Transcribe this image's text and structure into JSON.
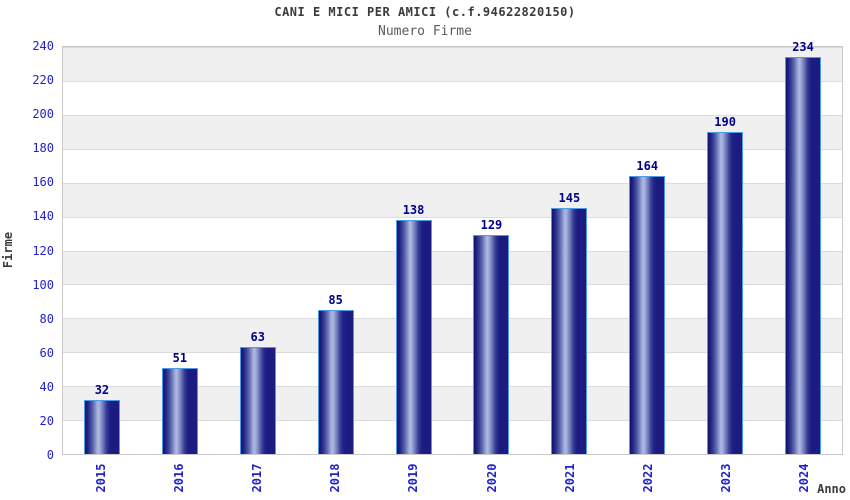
{
  "header": {
    "title": "CANI E MICI PER AMICI (c.f.94622820150)",
    "subtitle": "Numero Firme"
  },
  "chart_data": {
    "type": "bar",
    "title": "CANI E MICI PER AMICI (c.f.94622820150)",
    "subtitle": "Numero Firme",
    "categories": [
      "2015",
      "2016",
      "2017",
      "2018",
      "2019",
      "2020",
      "2021",
      "2022",
      "2023",
      "2024"
    ],
    "values": [
      32,
      51,
      63,
      85,
      138,
      129,
      145,
      164,
      190,
      234
    ],
    "value_labels": [
      "32",
      "51",
      "63",
      "85",
      "138",
      "129",
      "145",
      "164",
      "190",
      "234"
    ],
    "xlabel": "Anno",
    "ylabel": "Firme",
    "ylim": [
      0,
      240
    ],
    "ytick_step": 20,
    "yticks": [
      0,
      20,
      40,
      60,
      80,
      100,
      120,
      140,
      160,
      180,
      200,
      220,
      240
    ],
    "grid": "horizontal-bands-alternating",
    "legend": "none",
    "colors": {
      "axis_tick_label": "#2222cc",
      "value_label": "#00008b",
      "title": "#3a3a3a",
      "subtitle": "#5c5c5c",
      "band_gray": "#f0f0f0",
      "gridline": "#dcdcdc",
      "plot_border": "#c9c9c9",
      "bar_border": "#4d9be6",
      "bar_dark": "#1c1c80",
      "bar_highlight": "#b0bae2"
    }
  }
}
